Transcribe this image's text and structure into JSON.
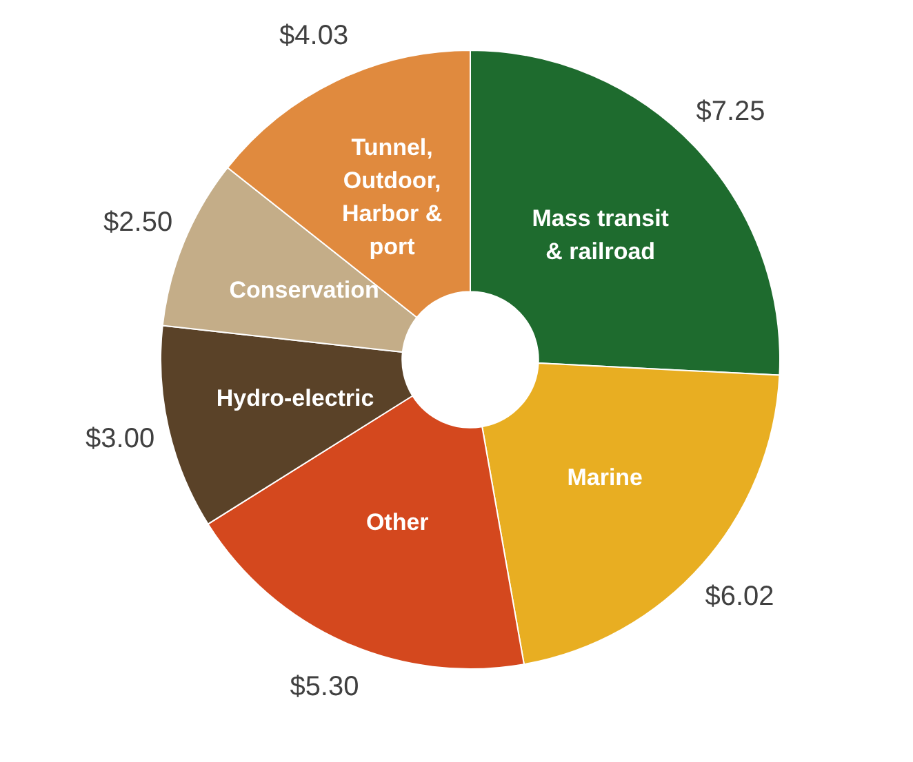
{
  "chart_data": {
    "type": "donut",
    "categories": [
      "Mass transit & railroad",
      "Marine",
      "Other",
      "Hydro-electric",
      "Conservation",
      "Tunnel, Outdoor, Harbor & port"
    ],
    "values": [
      7.25,
      6.02,
      5.3,
      3.0,
      2.5,
      4.03
    ],
    "value_labels": [
      "$7.25",
      "$6.02",
      "$5.30",
      "$3.00",
      "$2.50",
      "$4.03"
    ],
    "colors": [
      "#1e6b2e",
      "#e8ae22",
      "#d4481e",
      "#5a4228",
      "#c4ad88",
      "#e08a3e"
    ],
    "legend": false
  }
}
